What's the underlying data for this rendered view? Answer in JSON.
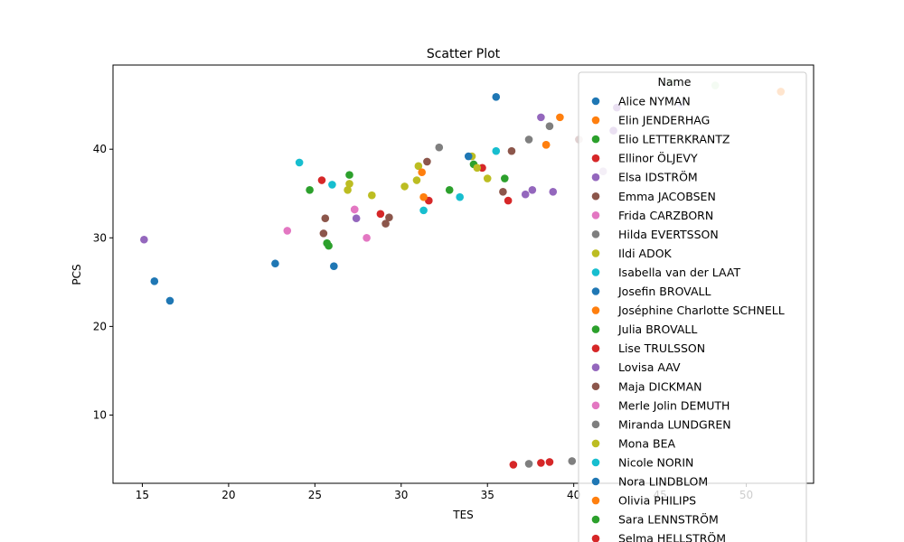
{
  "chart_data": {
    "type": "scatter",
    "title": "Scatter Plot",
    "xlabel": "TES",
    "ylabel": "PCS",
    "xlim": [
      13.3,
      53.9
    ],
    "ylim": [
      2.3,
      49.5
    ],
    "xticks": [
      15,
      20,
      25,
      30,
      35,
      40,
      45,
      50
    ],
    "yticks": [
      10,
      20,
      30,
      40
    ],
    "grid": false,
    "legend": {
      "title": "Name",
      "placement": "top-right"
    },
    "series": [
      {
        "name": "Alice NYMAN",
        "color": "#1f77b4",
        "points": [
          [
            15.7,
            25.1
          ],
          [
            16.6,
            22.9
          ]
        ]
      },
      {
        "name": "Elin JENDERHAG",
        "color": "#ff7f0e",
        "points": [
          [
            39.2,
            43.6
          ],
          [
            38.4,
            40.5
          ]
        ]
      },
      {
        "name": "Elio LETTERKRANTZ",
        "color": "#2ca02c",
        "points": [
          [
            24.7,
            35.4
          ],
          [
            27.0,
            37.1
          ]
        ]
      },
      {
        "name": "Ellinor ÖLJEVY",
        "color": "#d62728",
        "points": [
          [
            25.4,
            36.5
          ],
          [
            31.6,
            34.2
          ]
        ]
      },
      {
        "name": "Elsa IDSTRÖM",
        "color": "#9467bd",
        "points": [
          [
            38.1,
            43.6
          ],
          [
            42.3,
            42.1
          ]
        ]
      },
      {
        "name": "Emma JACOBSEN",
        "color": "#8c564b",
        "points": [
          [
            31.5,
            38.6
          ],
          [
            36.4,
            39.8
          ]
        ]
      },
      {
        "name": "Frida CARZBORN",
        "color": "#e377c2",
        "points": [
          [
            23.4,
            30.8
          ],
          [
            27.3,
            33.2
          ]
        ]
      },
      {
        "name": "Hilda EVERTSSON",
        "color": "#7f7f7f",
        "points": [
          [
            32.2,
            40.2
          ],
          [
            38.6,
            42.6
          ]
        ]
      },
      {
        "name": "Ildi ADOK",
        "color": "#bcbd22",
        "points": [
          [
            31.0,
            38.1
          ],
          [
            34.1,
            39.2
          ]
        ]
      },
      {
        "name": "Isabella van der LAAT",
        "color": "#17becf",
        "points": [
          [
            24.1,
            38.5
          ],
          [
            26.0,
            36.0
          ]
        ]
      },
      {
        "name": "Josefin BROVALL",
        "color": "#1f77b4",
        "points": [
          [
            22.7,
            27.1
          ],
          [
            26.1,
            26.8
          ]
        ]
      },
      {
        "name": "Joséphine Charlotte SCHNELL",
        "color": "#ff7f0e",
        "points": [
          [
            31.2,
            37.4
          ],
          [
            31.3,
            34.6
          ]
        ]
      },
      {
        "name": "Julia BROVALL",
        "color": "#2ca02c",
        "points": [
          [
            25.7,
            29.4
          ],
          [
            25.8,
            29.1
          ]
        ]
      },
      {
        "name": "Lise TRULSSON",
        "color": "#d62728",
        "points": [
          [
            28.8,
            32.7
          ],
          [
            36.2,
            34.2
          ]
        ]
      },
      {
        "name": "Lovisa AAV",
        "color": "#9467bd",
        "points": [
          [
            15.1,
            29.8
          ],
          [
            27.4,
            32.2
          ]
        ]
      },
      {
        "name": "Maja DICKMAN",
        "color": "#8c564b",
        "points": [
          [
            25.6,
            32.2
          ],
          [
            29.3,
            32.3
          ]
        ]
      },
      {
        "name": "Merle Jolin DEMUTH",
        "color": "#e377c2",
        "points": [
          [
            28.0,
            30.0
          ],
          [
            27.3,
            33.2
          ]
        ]
      },
      {
        "name": "Miranda LUNDGREN",
        "color": "#7f7f7f",
        "points": [
          [
            37.4,
            4.5
          ],
          [
            39.9,
            4.8
          ]
        ]
      },
      {
        "name": "Mona BEA",
        "color": "#bcbd22",
        "points": [
          [
            28.3,
            34.8
          ],
          [
            30.2,
            35.8
          ]
        ]
      },
      {
        "name": "Nicole NORIN",
        "color": "#17becf",
        "points": [
          [
            33.4,
            34.6
          ],
          [
            35.5,
            39.8
          ]
        ]
      },
      {
        "name": "Nora LINDBLOM",
        "color": "#1f77b4",
        "points": [
          [
            33.9,
            39.2
          ],
          [
            35.5,
            45.9
          ]
        ]
      },
      {
        "name": "Olivia PHILIPS",
        "color": "#ff7f0e",
        "points": [
          [
            52.0,
            46.5
          ],
          [
            38.4,
            40.5
          ]
        ]
      },
      {
        "name": "Sara LENNSTRÖM",
        "color": "#2ca02c",
        "points": [
          [
            32.8,
            35.4
          ],
          [
            36.0,
            36.7
          ]
        ]
      },
      {
        "name": "Selma HELLSTRÖM",
        "color": "#d62728",
        "points": [
          [
            36.5,
            4.4
          ],
          [
            38.1,
            4.6
          ]
        ]
      }
    ],
    "extra_points": [
      {
        "color": "#d62728",
        "x": 38.6,
        "y": 4.7
      },
      {
        "color": "#d62728",
        "x": 34.7,
        "y": 37.9
      },
      {
        "color": "#2ca02c",
        "x": 34.2,
        "y": 38.3
      },
      {
        "color": "#bcbd22",
        "x": 34.4,
        "y": 37.9
      },
      {
        "color": "#bcbd22",
        "x": 35.0,
        "y": 36.7
      },
      {
        "color": "#bcbd22",
        "x": 30.9,
        "y": 36.5
      },
      {
        "color": "#bcbd22",
        "x": 26.9,
        "y": 35.4
      },
      {
        "color": "#bcbd22",
        "x": 27.0,
        "y": 36.1
      },
      {
        "color": "#17becf",
        "x": 31.3,
        "y": 33.1
      },
      {
        "color": "#8c564b",
        "x": 35.9,
        "y": 35.2
      },
      {
        "color": "#8c564b",
        "x": 25.5,
        "y": 30.5
      },
      {
        "color": "#8c564b",
        "x": 29.1,
        "y": 31.6
      },
      {
        "color": "#9467bd",
        "x": 37.2,
        "y": 34.9
      },
      {
        "color": "#9467bd",
        "x": 37.6,
        "y": 35.4
      },
      {
        "color": "#9467bd",
        "x": 38.8,
        "y": 35.2
      },
      {
        "color": "#9467bd",
        "x": 42.5,
        "y": 44.7
      },
      {
        "color": "#7f7f7f",
        "x": 37.4,
        "y": 41.1
      },
      {
        "color": "#c5b0d5",
        "x": 41.7,
        "y": 37.5
      },
      {
        "color": "#e0d0d0",
        "x": 40.3,
        "y": 41.1
      },
      {
        "color": "#c7e9c0",
        "x": 45.6,
        "y": 47.6
      },
      {
        "color": "#c7e9c0",
        "x": 48.2,
        "y": 47.2
      },
      {
        "color": "#d0d0ff",
        "x": 46.2,
        "y": 45.1
      },
      {
        "color": "#ffe0c8",
        "x": 52.0,
        "y": 46.5
      }
    ]
  }
}
